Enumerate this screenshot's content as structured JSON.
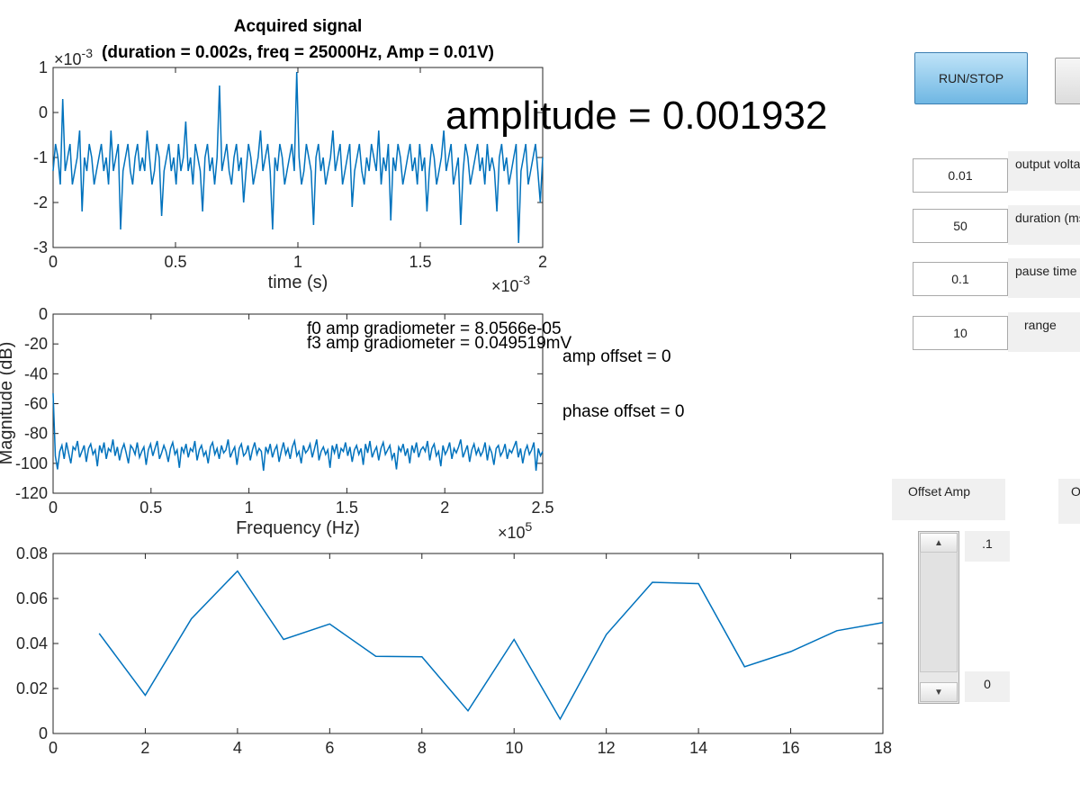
{
  "chart_data": [
    {
      "type": "line",
      "title": "Acquired signal",
      "subtitle": "(duration = 0.002s, freq = 25000Hz, Amp = 0.01V)",
      "xlabel": "time (s)",
      "ylabel": "",
      "x_exponent": "×10",
      "x_exponent_power": "-3",
      "y_exponent": "×10",
      "y_exponent_power": "-3",
      "xlim": [
        0,
        2
      ],
      "ylim": [
        -3,
        1
      ],
      "xticks": [
        0,
        0.5,
        1,
        1.5,
        2
      ],
      "xtick_labels": [
        "0",
        "0.5",
        "1",
        "1.5",
        "2"
      ],
      "yticks": [
        -3,
        -2,
        -1,
        0,
        1
      ],
      "ytick_labels": [
        "-3",
        "-2",
        "-1",
        "0",
        "1"
      ],
      "series": [
        {
          "name": "",
          "x_start": 0,
          "x_end": 2,
          "values": [
            -1.3,
            -0.7,
            -1.0,
            -1.6,
            0.3,
            -1.3,
            -1.0,
            -0.7,
            -1.6,
            -1.3,
            -1.0,
            -0.4,
            -2.2,
            -1.0,
            -1.3,
            -0.7,
            -1.0,
            -1.6,
            -1.3,
            -1.0,
            -0.7,
            -1.3,
            -1.0,
            -1.6,
            -0.4,
            -1.3,
            -1.0,
            -0.7,
            -2.6,
            -1.3,
            -1.0,
            -0.7,
            -1.3,
            -1.6,
            -1.0,
            -0.7,
            -1.3,
            -1.0,
            -1.3,
            -0.4,
            -1.0,
            -1.6,
            -1.3,
            -0.7,
            -1.0,
            -2.3,
            -1.3,
            -1.0,
            -0.7,
            -1.3,
            -1.0,
            -1.6,
            -0.7,
            -1.3,
            -1.0,
            -0.2,
            -1.3,
            -1.0,
            -1.6,
            -0.7,
            -1.0,
            -1.3,
            -2.2,
            -1.0,
            -0.7,
            -1.3,
            -1.0,
            -1.6,
            -1.0,
            0.6,
            -1.3,
            -1.0,
            -0.7,
            -1.3,
            -1.6,
            -1.0,
            -0.7,
            -1.3,
            -1.0,
            -2.0,
            -1.3,
            -0.7,
            -1.0,
            -1.6,
            -1.3,
            -1.0,
            -0.4,
            -1.3,
            -1.0,
            -0.7,
            -1.3,
            -2.6,
            -1.0,
            -1.3,
            -0.7,
            -1.0,
            -1.6,
            -1.3,
            -1.0,
            -0.7,
            -1.3,
            0.9,
            -1.0,
            -1.6,
            -1.3,
            -0.7,
            -1.0,
            -1.3,
            -2.5,
            -1.0,
            -0.7,
            -1.3,
            -1.0,
            -1.6,
            -1.3,
            -1.0,
            -0.4,
            -1.3,
            -1.0,
            -0.7,
            -1.6,
            -1.3,
            -1.0,
            -0.7,
            -2.1,
            -1.3,
            -1.0,
            -0.7,
            -1.3,
            -1.6,
            -1.0,
            -1.3,
            -0.7,
            -1.0,
            -1.3,
            -0.4,
            -1.6,
            -1.0,
            -1.3,
            -0.7,
            -2.4,
            -1.0,
            -1.3,
            -0.7,
            -1.0,
            -1.6,
            -1.3,
            -1.0,
            -0.7,
            -1.3,
            -1.0,
            -1.6,
            -0.7,
            -1.3,
            -1.0,
            -2.2,
            -1.3,
            -0.7,
            -1.0,
            -1.6,
            -1.3,
            -1.0,
            -0.4,
            -1.3,
            -1.0,
            -0.7,
            -1.6,
            -1.3,
            -1.0,
            -2.5,
            -1.3,
            -0.7,
            -1.0,
            -1.6,
            -1.3,
            -1.0,
            -0.7,
            -1.3,
            -1.0,
            -1.6,
            -0.7,
            -1.3,
            -1.0,
            -1.3,
            -2.2,
            -1.0,
            -0.7,
            -1.3,
            -1.0,
            -1.6,
            -1.3,
            -1.0,
            -0.7,
            -2.9,
            -1.3,
            -1.0,
            -0.7,
            -1.6,
            -1.3,
            -1.0,
            -0.7,
            -1.3,
            -2.0,
            -1.0
          ]
        }
      ]
    },
    {
      "type": "line",
      "title": "",
      "xlabel": "Frequency (Hz)",
      "ylabel": "Magnitude (dB)",
      "x_exponent": "×10",
      "x_exponent_power": "5",
      "xlim": [
        0,
        2.5
      ],
      "ylim": [
        -120,
        0
      ],
      "xticks": [
        0,
        0.5,
        1,
        1.5,
        2,
        2.5
      ],
      "xtick_labels": [
        "0",
        "0.5",
        "1",
        "1.5",
        "2",
        "2.5"
      ],
      "yticks": [
        -120,
        -100,
        -80,
        -60,
        -40,
        -20,
        0
      ],
      "ytick_labels": [
        "-120",
        "-100",
        "-80",
        "-60",
        "-40",
        "-20",
        "0"
      ],
      "series": [
        {
          "name": "",
          "x_start": 0,
          "x_end": 2.5,
          "values": [
            -53,
            -95,
            -104,
            -92,
            -88,
            -97,
            -86,
            -93,
            -100,
            -89,
            -91,
            -85,
            -96,
            -92,
            -88,
            -99,
            -90,
            -87,
            -94,
            -91,
            -102,
            -88,
            -93,
            -86,
            -97,
            -90,
            -92,
            -84,
            -95,
            -89,
            -98,
            -91,
            -87,
            -93,
            -100,
            -88,
            -90,
            -94,
            -86,
            -96,
            -92,
            -89,
            -101,
            -91,
            -87,
            -95,
            -90,
            -85,
            -97,
            -93,
            -88,
            -92,
            -99,
            -90,
            -86,
            -94,
            -91,
            -103,
            -89,
            -93,
            -87,
            -96,
            -90,
            -92,
            -85,
            -98,
            -91,
            -88,
            -95,
            -92,
            -100,
            -89,
            -86,
            -94,
            -90,
            -97,
            -88,
            -93,
            -91,
            -84,
            -96,
            -92,
            -89,
            -101,
            -90,
            -87,
            -95,
            -93,
            -88,
            -98,
            -91,
            -86,
            -94,
            -90,
            -92,
            -105,
            -89,
            -93,
            -87,
            -96,
            -91,
            -88,
            -99,
            -92,
            -86,
            -94,
            -90,
            -97,
            -89,
            -85,
            -95,
            -92,
            -100,
            -88,
            -93,
            -91,
            -87,
            -96,
            -90,
            -84,
            -98,
            -92,
            -89,
            -94,
            -91,
            -103,
            -88,
            -93,
            -87,
            -97,
            -90,
            -92,
            -86,
            -95,
            -89,
            -99,
            -91,
            -88,
            -94,
            -90,
            -101,
            -87,
            -93,
            -85,
            -96,
            -92,
            -89,
            -98,
            -90,
            -86,
            -94,
            -91,
            -88,
            -97,
            -93,
            -104,
            -89,
            -92,
            -87,
            -95,
            -90,
            -100,
            -88,
            -93,
            -86,
            -96,
            -91,
            -89,
            -92,
            -85,
            -98,
            -90,
            -87,
            -95,
            -92,
            -102,
            -88,
            -94,
            -91,
            -86,
            -97,
            -90,
            -93,
            -89,
            -84,
            -96,
            -92,
            -88,
            -99,
            -91,
            -87,
            -94,
            -90,
            -95,
            -92,
            -86,
            -98,
            -89,
            -93,
            -101,
            -90,
            -88,
            -95,
            -92,
            -87,
            -97,
            -91,
            -93,
            -89,
            -85,
            -96,
            -90,
            -100,
            -92,
            -88,
            -94,
            -91,
            -86,
            -105,
            -90,
            -95,
            -92
          ]
        }
      ]
    },
    {
      "type": "line",
      "title": "",
      "xlabel": "",
      "ylabel": "",
      "xlim": [
        0,
        18
      ],
      "ylim": [
        0,
        0.08
      ],
      "xticks": [
        0,
        2,
        4,
        6,
        8,
        10,
        12,
        14,
        16,
        18
      ],
      "xtick_labels": [
        "0",
        "2",
        "4",
        "6",
        "8",
        "10",
        "12",
        "14",
        "16",
        "18"
      ],
      "yticks": [
        0,
        0.02,
        0.04,
        0.06,
        0.08
      ],
      "ytick_labels": [
        "0",
        "0.02",
        "0.04",
        "0.06",
        "0.08"
      ],
      "series": [
        {
          "name": "",
          "x": [
            1,
            2,
            3,
            4,
            5,
            6,
            7,
            8,
            9,
            10,
            11,
            12,
            13,
            14,
            15,
            16,
            17,
            18
          ],
          "values": [
            0.0445,
            0.017,
            0.051,
            0.0722,
            0.0418,
            0.0487,
            0.0343,
            0.0341,
            0.0101,
            0.0418,
            0.0064,
            0.044,
            0.0672,
            0.0666,
            0.0297,
            0.0364,
            0.0457,
            0.0493
          ]
        }
      ]
    }
  ],
  "annotations": {
    "amplitude": "amplitude = 0.001932",
    "f0": "f0 amp gradiometer = 8.0566e-05",
    "f3": "f3 amp gradiometer = 0.049519mV",
    "amp_offset": "amp offset = 0",
    "phase_offset": "phase offset = 0"
  },
  "controls": {
    "run_stop_label": "RUN/STOP",
    "fields": [
      {
        "value": "0.01",
        "label": "output voltage"
      },
      {
        "value": "50",
        "label": "duration (ms)"
      },
      {
        "value": "0.1",
        "label": "pause time"
      },
      {
        "value": "10",
        "label": "range"
      }
    ],
    "offset_amp_label": "Offset Amp",
    "offset_phase_label": "Offset Phase",
    "slider": {
      "max_label": ".1",
      "min_label": "0",
      "value_fraction": 0
    }
  },
  "colors": {
    "line": "#0072bd",
    "axis": "#262626",
    "button": "#6fb7e3"
  }
}
